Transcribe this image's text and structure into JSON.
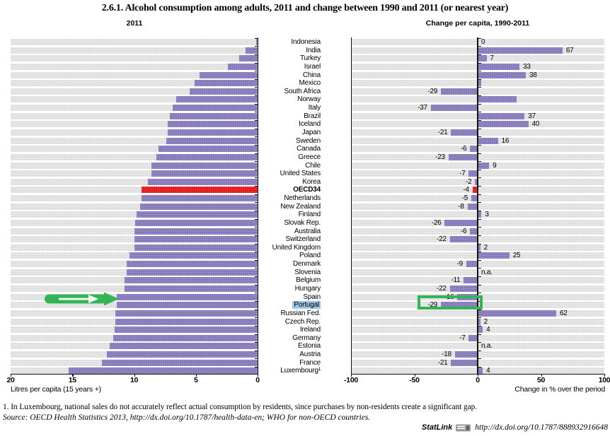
{
  "title": "2.6.1.   Alcohol consumption among adults, 2011 and change between 1990 and 2011 (or nearest year)",
  "left_chart": {
    "header": "2011",
    "axis_ticks": [
      "20",
      "15",
      "10",
      "5",
      "0"
    ],
    "axis_label": "Litres per capita (15 years +)"
  },
  "right_chart": {
    "header": "Change per capita, 1990-2011",
    "axis_ticks": [
      "-100",
      "-50",
      "0",
      "50",
      "100"
    ],
    "axis_label": "Change in % over the period"
  },
  "chart_data": {
    "type": "bar",
    "orientation": "horizontal",
    "title": "2.6.1. Alcohol consumption among adults, 2011 and change between 1990 and 2011 (or nearest year)",
    "categories": [
      "Indonesia",
      "India",
      "Turkey",
      "Israel",
      "China",
      "Mexico",
      "South Africa",
      "Norway",
      "Italy",
      "Brazil",
      "Iceland",
      "Japan",
      "Sweden",
      "Canada",
      "Greece",
      "Chile",
      "United States",
      "Korea",
      "OECD34",
      "Netherlands",
      "New Zealand",
      "Finland",
      "Slovak Rep.",
      "Australia",
      "Switzerland",
      "United Kingdom",
      "Poland",
      "Denmark",
      "Slovenia",
      "Belgium",
      "Hungary",
      "Spain",
      "Portugal",
      "Russian Fed.",
      "Czech Rep.",
      "Ireland",
      "Germany",
      "Estonia",
      "Austria",
      "France",
      "Luxembourg¹"
    ],
    "series": [
      {
        "name": "2011",
        "unit": "litres per capita (15 years +)",
        "axis_range": [
          0,
          20
        ],
        "values": [
          0.1,
          1.0,
          1.5,
          2.4,
          4.7,
          5.1,
          5.5,
          6.6,
          6.9,
          7.1,
          7.3,
          7.3,
          7.4,
          8.0,
          8.2,
          8.6,
          8.6,
          8.9,
          9.4,
          9.4,
          9.5,
          9.8,
          9.9,
          10.0,
          10.0,
          10.0,
          10.4,
          10.6,
          10.6,
          10.8,
          10.8,
          11.4,
          11.4,
          11.5,
          11.5,
          11.6,
          11.7,
          12.0,
          12.2,
          12.6,
          15.3
        ]
      },
      {
        "name": "Change per capita, 1990-2011",
        "unit": "change in % over the period",
        "axis_range": [
          -100,
          100
        ],
        "values": [
          0,
          67,
          7,
          33,
          38,
          3,
          -29,
          31,
          -37,
          37,
          40,
          -21,
          16,
          -6,
          -23,
          9,
          -7,
          -2,
          -4,
          -5,
          -8,
          3,
          -26,
          -6,
          -22,
          2,
          25,
          -9,
          null,
          -11,
          -22,
          -16,
          -29,
          62,
          2,
          4,
          -7,
          null,
          -18,
          -21,
          4
        ],
        "value_labels": [
          "0",
          "67",
          "7",
          "33",
          "38",
          "",
          "-29",
          "",
          "-37",
          "37",
          "40",
          "-21",
          "16",
          "-6",
          "-23",
          "9",
          "-7",
          "-2",
          "-4",
          "-5",
          "-8",
          "3",
          "-26",
          "-6",
          "-22",
          "2",
          "25",
          "-9",
          "n.a.",
          "-11",
          "-22",
          "-16",
          "-29",
          "62",
          "2",
          "4",
          "-7",
          "n.a.",
          "-18",
          "-21",
          "4"
        ]
      }
    ],
    "bar_color": "#8276b8",
    "track_color": "#eaeaea",
    "emphasis_row": "OECD34",
    "emphasis_color": "#e11212",
    "legend": "none",
    "grid": "off"
  },
  "annotations": {
    "highlighted_country": "Portugal",
    "highlight_color": "#9fc5e8",
    "green_color": "#33b456",
    "arrow_row": "Portugal",
    "box_value": "-29"
  },
  "footnote": "1.  In Luxembourg, national sales do not accurately reflect actual consumption by residents, since purchases by non-residents create a significant gap.",
  "source": {
    "label": "Source:",
    "prefix": "  OECD Health Statistics 2013, ",
    "url": "http://dx.doi.org/10.1787/health-data-en",
    "suffix": "; WHO for non-OECD countries."
  },
  "statlink": {
    "label": "StatLink",
    "url": "http://dx.doi.org/10.1787/888932916648"
  }
}
